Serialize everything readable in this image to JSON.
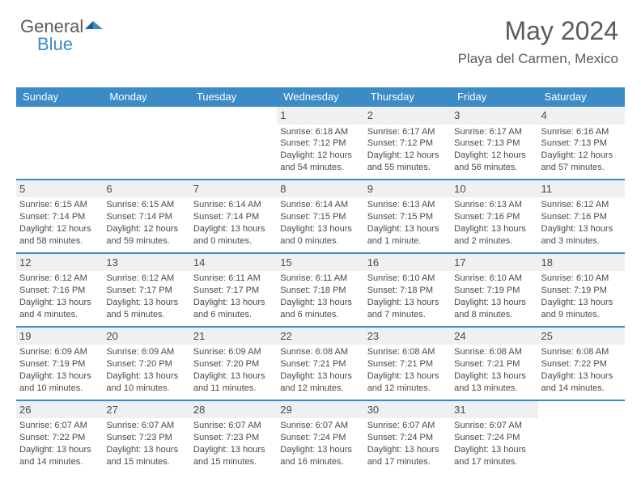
{
  "logo": {
    "text1": "General",
    "text2": "Blue"
  },
  "header": {
    "month": "May 2024",
    "location": "Playa del Carmen, Mexico"
  },
  "colors": {
    "header_bg": "#3b8bc6",
    "daynum_bg": "#eef0f2",
    "border": "#3b8bc6",
    "text": "#4a4a4a"
  },
  "days_of_week": [
    "Sunday",
    "Monday",
    "Tuesday",
    "Wednesday",
    "Thursday",
    "Friday",
    "Saturday"
  ],
  "weeks": [
    [
      null,
      null,
      null,
      {
        "n": "1",
        "sr": "6:18 AM",
        "ss": "7:12 PM",
        "dl": "12 hours and 54 minutes."
      },
      {
        "n": "2",
        "sr": "6:17 AM",
        "ss": "7:12 PM",
        "dl": "12 hours and 55 minutes."
      },
      {
        "n": "3",
        "sr": "6:17 AM",
        "ss": "7:13 PM",
        "dl": "12 hours and 56 minutes."
      },
      {
        "n": "4",
        "sr": "6:16 AM",
        "ss": "7:13 PM",
        "dl": "12 hours and 57 minutes."
      }
    ],
    [
      {
        "n": "5",
        "sr": "6:15 AM",
        "ss": "7:14 PM",
        "dl": "12 hours and 58 minutes."
      },
      {
        "n": "6",
        "sr": "6:15 AM",
        "ss": "7:14 PM",
        "dl": "12 hours and 59 minutes."
      },
      {
        "n": "7",
        "sr": "6:14 AM",
        "ss": "7:14 PM",
        "dl": "13 hours and 0 minutes."
      },
      {
        "n": "8",
        "sr": "6:14 AM",
        "ss": "7:15 PM",
        "dl": "13 hours and 0 minutes."
      },
      {
        "n": "9",
        "sr": "6:13 AM",
        "ss": "7:15 PM",
        "dl": "13 hours and 1 minute."
      },
      {
        "n": "10",
        "sr": "6:13 AM",
        "ss": "7:16 PM",
        "dl": "13 hours and 2 minutes."
      },
      {
        "n": "11",
        "sr": "6:12 AM",
        "ss": "7:16 PM",
        "dl": "13 hours and 3 minutes."
      }
    ],
    [
      {
        "n": "12",
        "sr": "6:12 AM",
        "ss": "7:16 PM",
        "dl": "13 hours and 4 minutes."
      },
      {
        "n": "13",
        "sr": "6:12 AM",
        "ss": "7:17 PM",
        "dl": "13 hours and 5 minutes."
      },
      {
        "n": "14",
        "sr": "6:11 AM",
        "ss": "7:17 PM",
        "dl": "13 hours and 6 minutes."
      },
      {
        "n": "15",
        "sr": "6:11 AM",
        "ss": "7:18 PM",
        "dl": "13 hours and 6 minutes."
      },
      {
        "n": "16",
        "sr": "6:10 AM",
        "ss": "7:18 PM",
        "dl": "13 hours and 7 minutes."
      },
      {
        "n": "17",
        "sr": "6:10 AM",
        "ss": "7:19 PM",
        "dl": "13 hours and 8 minutes."
      },
      {
        "n": "18",
        "sr": "6:10 AM",
        "ss": "7:19 PM",
        "dl": "13 hours and 9 minutes."
      }
    ],
    [
      {
        "n": "19",
        "sr": "6:09 AM",
        "ss": "7:19 PM",
        "dl": "13 hours and 10 minutes."
      },
      {
        "n": "20",
        "sr": "6:09 AM",
        "ss": "7:20 PM",
        "dl": "13 hours and 10 minutes."
      },
      {
        "n": "21",
        "sr": "6:09 AM",
        "ss": "7:20 PM",
        "dl": "13 hours and 11 minutes."
      },
      {
        "n": "22",
        "sr": "6:08 AM",
        "ss": "7:21 PM",
        "dl": "13 hours and 12 minutes."
      },
      {
        "n": "23",
        "sr": "6:08 AM",
        "ss": "7:21 PM",
        "dl": "13 hours and 12 minutes."
      },
      {
        "n": "24",
        "sr": "6:08 AM",
        "ss": "7:21 PM",
        "dl": "13 hours and 13 minutes."
      },
      {
        "n": "25",
        "sr": "6:08 AM",
        "ss": "7:22 PM",
        "dl": "13 hours and 14 minutes."
      }
    ],
    [
      {
        "n": "26",
        "sr": "6:07 AM",
        "ss": "7:22 PM",
        "dl": "13 hours and 14 minutes."
      },
      {
        "n": "27",
        "sr": "6:07 AM",
        "ss": "7:23 PM",
        "dl": "13 hours and 15 minutes."
      },
      {
        "n": "28",
        "sr": "6:07 AM",
        "ss": "7:23 PM",
        "dl": "13 hours and 15 minutes."
      },
      {
        "n": "29",
        "sr": "6:07 AM",
        "ss": "7:24 PM",
        "dl": "13 hours and 16 minutes."
      },
      {
        "n": "30",
        "sr": "6:07 AM",
        "ss": "7:24 PM",
        "dl": "13 hours and 17 minutes."
      },
      {
        "n": "31",
        "sr": "6:07 AM",
        "ss": "7:24 PM",
        "dl": "13 hours and 17 minutes."
      },
      null
    ]
  ],
  "labels": {
    "sunrise": "Sunrise:",
    "sunset": "Sunset:",
    "daylight": "Daylight:"
  }
}
